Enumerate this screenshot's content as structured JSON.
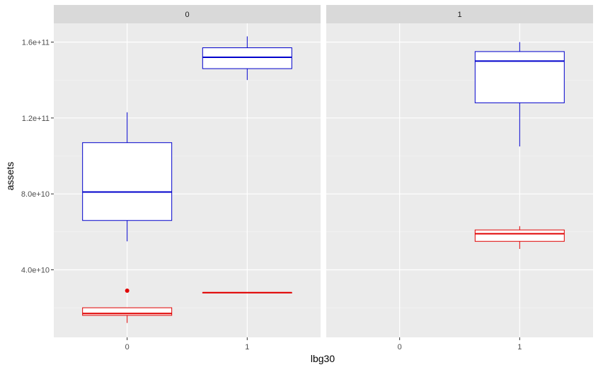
{
  "chart_data": {
    "type": "box",
    "facet_variable": "",
    "facets": [
      "0",
      "1"
    ],
    "categories": [
      "0",
      "1"
    ],
    "xlabel": "lbg30",
    "ylabel": "assets",
    "ylim": [
      0,
      170000000000
    ],
    "yticks": [
      {
        "value": 40000000000,
        "label": "4.0e+10"
      },
      {
        "value": 80000000000,
        "label": "8.0e+10"
      },
      {
        "value": 120000000000,
        "label": "1.2e+11"
      },
      {
        "value": 160000000000,
        "label": "1.6e+11"
      }
    ],
    "grid": true,
    "background": "#ebebeb",
    "strip_background": "#d9d9d9",
    "series": [
      {
        "color": "#0000cc",
        "boxes": [
          {
            "facet": "0",
            "x": "0",
            "min": 55000000000,
            "q1": 66000000000,
            "median": 81000000000,
            "q3": 107000000000,
            "max": 123000000000,
            "outliers": []
          },
          {
            "facet": "0",
            "x": "1",
            "min": 140000000000,
            "q1": 146000000000,
            "median": 152000000000,
            "q3": 157000000000,
            "max": 163000000000,
            "outliers": []
          },
          {
            "facet": "1",
            "x": "1",
            "min": 105000000000,
            "q1": 128000000000,
            "median": 150000000000,
            "q3": 155000000000,
            "max": 160000000000,
            "outliers": []
          }
        ]
      },
      {
        "color": "#e00000",
        "boxes": [
          {
            "facet": "0",
            "x": "0",
            "min": 12000000000,
            "q1": 16000000000,
            "median": 17000000000,
            "q3": 20000000000,
            "max": 20000000000,
            "outliers": [
              29000000000
            ]
          },
          {
            "facet": "0",
            "x": "1",
            "min": 28000000000,
            "q1": 28000000000,
            "median": 28000000000,
            "q3": 28000000000,
            "max": 28000000000,
            "outliers": []
          },
          {
            "facet": "1",
            "x": "1",
            "min": 51000000000,
            "q1": 55000000000,
            "median": 59000000000,
            "q3": 61000000000,
            "max": 63000000000,
            "outliers": []
          }
        ]
      }
    ]
  }
}
